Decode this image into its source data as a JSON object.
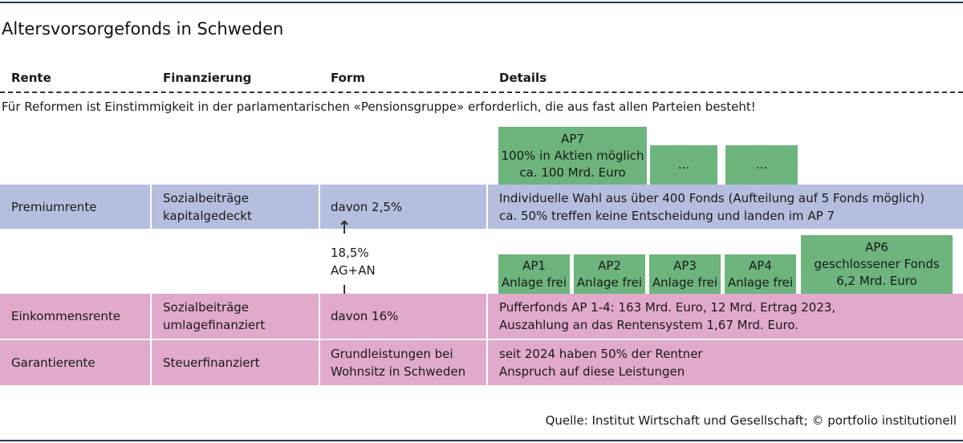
{
  "title": "Altersvorsorgefonds in Schweden",
  "headers": {
    "rente": "Rente",
    "finanzierung": "Finanzierung",
    "form": "Form",
    "details": "Details"
  },
  "note": "Für Reformen ist Einstimmigkeit in der parlamentarischen «Pensionsgruppe» erforderlich, die aus fast allen Parteien besteht!",
  "top_funds": {
    "ap7": {
      "name": "AP7",
      "line1": "100% in Aktien möglich",
      "line2": "ca. 100 Mrd. Euro"
    },
    "more1": "...",
    "more2": "..."
  },
  "rows": {
    "premium": {
      "rente": "Premiumrente",
      "fin1": "Sozialbeiträge",
      "fin2": "kapitalgedeckt",
      "form": "davon 2,5%",
      "det1": "Individuelle Wahl aus über 400 Fonds (Aufteilung auf 5 Fonds möglich)",
      "det2": "ca. 50% treffen keine Entscheidung und landen im AP 7"
    },
    "einkommen": {
      "rente": "Einkommensrente",
      "fin1": "Sozialbeiträge",
      "fin2": "umlagefinanziert",
      "form": "davon 16%",
      "det1": "Pufferfonds AP 1-4: 163 Mrd. Euro, 12 Mrd. Ertrag 2023,",
      "det2": "Auszahlung an das Rentensystem 1,67 Mrd. Euro."
    },
    "garantie": {
      "rente": "Garantierente",
      "fin1": "Steuerfinanziert",
      "form1": "Grundleistungen bei",
      "form2": "Wohnsitz in Schweden",
      "det1": "seit 2024 haben 50% der Rentner",
      "det2": "Anspruch auf diese Leistungen"
    }
  },
  "split": {
    "total": "18,5%",
    "who": "AG+AN",
    "arrow_up": "↑",
    "arrow_down": "↓"
  },
  "buffer_funds": [
    {
      "name": "AP1",
      "sub": "Anlage frei"
    },
    {
      "name": "AP2",
      "sub": "Anlage frei"
    },
    {
      "name": "AP3",
      "sub": "Anlage frei"
    },
    {
      "name": "AP4",
      "sub": "Anlage frei"
    }
  ],
  "ap6": {
    "name": "AP6",
    "line1": "geschlossener Fonds",
    "line2": "6,2 Mrd. Euro"
  },
  "source": "Quelle: Institut Wirtschaft und Gesellschaft; © portfolio institutionell",
  "colors": {
    "premium_row": "#b6bedf",
    "income_row": "#e1a9cb",
    "fund_box": "#6db47d",
    "rule": "#1f3d5c"
  }
}
